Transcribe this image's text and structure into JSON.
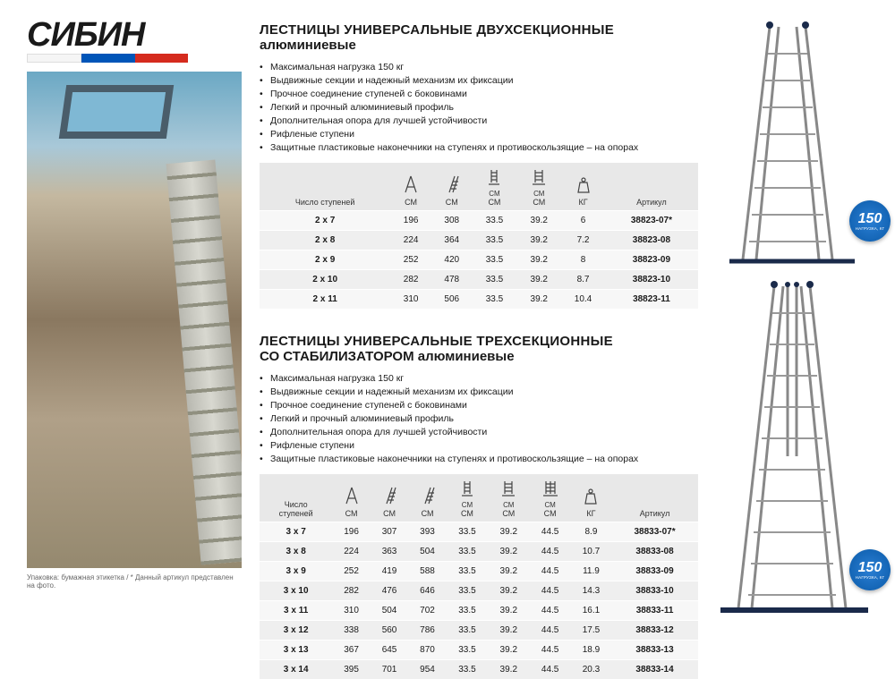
{
  "logo": {
    "text": "СИБИН"
  },
  "footnote": "Упаковка: бумажная этикетка  /  * Данный артикул представлен на фото.",
  "section1": {
    "title_line1": "ЛЕСТНИЦЫ УНИВЕРСАЛЬНЫЕ ДВУХСЕКЦИОННЫЕ",
    "title_line2": "алюминиевые",
    "bullets": [
      "Максимальная нагрузка 150 кг",
      "Выдвижные секции и надежный механизм их фиксации",
      "Прочное соединение ступеней с боковинами",
      "Легкий и прочный алюминиевый профиль",
      "Дополнительная опора для лучшей устойчивости",
      "Рифленые ступени",
      "Защитные пластиковые наконечники на ступенях и противоскользящие – на опорах"
    ],
    "headers": [
      "Число ступеней",
      "СМ",
      "СМ",
      "СМ",
      "СМ",
      "КГ",
      "Артикул"
    ],
    "sub_cm": [
      "",
      "",
      "",
      "",
      "СМ",
      "",
      ""
    ],
    "rows": [
      [
        "2 x 7",
        "196",
        "308",
        "33.5",
        "39.2",
        "6",
        "38823-07*"
      ],
      [
        "2 x 8",
        "224",
        "364",
        "33.5",
        "39.2",
        "7.2",
        "38823-08"
      ],
      [
        "2 x 9",
        "252",
        "420",
        "33.5",
        "39.2",
        "8",
        "38823-09"
      ],
      [
        "2 x 10",
        "282",
        "478",
        "33.5",
        "39.2",
        "8.7",
        "38823-10"
      ],
      [
        "2 x 11",
        "310",
        "506",
        "33.5",
        "39.2",
        "10.4",
        "38823-11"
      ]
    ]
  },
  "section2": {
    "title_line1": "ЛЕСТНИЦЫ УНИВЕРСАЛЬНЫЕ ТРЕХСЕКЦИОННЫЕ",
    "title_line2": "СО СТАБИЛИЗАТОРОМ алюминиевые",
    "bullets": [
      "Максимальная нагрузка 150 кг",
      "Выдвижные секции и надежный механизм их фиксации",
      "Прочное соединение ступеней с боковинами",
      "Легкий и прочный алюминиевый профиль",
      "Дополнительная опора для лучшей устойчивости",
      "Рифленые ступени",
      "Защитные пластиковые наконечники на ступенях и противоскользящие – на опорах"
    ],
    "headers": [
      "Число\nступеней",
      "СМ",
      "СМ",
      "СМ",
      "СМ",
      "СМ",
      "СМ",
      "КГ",
      "Артикул"
    ],
    "rows": [
      [
        "3 x 7",
        "196",
        "307",
        "393",
        "33.5",
        "39.2",
        "44.5",
        "8.9",
        "38833-07*"
      ],
      [
        "3 x 8",
        "224",
        "363",
        "504",
        "33.5",
        "39.2",
        "44.5",
        "10.7",
        "38833-08"
      ],
      [
        "3 x 9",
        "252",
        "419",
        "588",
        "33.5",
        "39.2",
        "44.5",
        "11.9",
        "38833-09"
      ],
      [
        "3 x 10",
        "282",
        "476",
        "646",
        "33.5",
        "39.2",
        "44.5",
        "14.3",
        "38833-10"
      ],
      [
        "3 x 11",
        "310",
        "504",
        "702",
        "33.5",
        "39.2",
        "44.5",
        "16.1",
        "38833-11"
      ],
      [
        "3 x 12",
        "338",
        "560",
        "786",
        "33.5",
        "39.2",
        "44.5",
        "17.5",
        "38833-12"
      ],
      [
        "3 x 13",
        "367",
        "645",
        "870",
        "33.5",
        "39.2",
        "44.5",
        "18.9",
        "38833-13"
      ],
      [
        "3 x 14",
        "395",
        "701",
        "954",
        "33.5",
        "39.2",
        "44.5",
        "20.3",
        "38833-14"
      ]
    ]
  },
  "badge": {
    "num": "150",
    "sub": "НАГРУЗКА, КГ"
  },
  "colors": {
    "bg": "#ffffff",
    "text": "#1a1a1a",
    "header_bg": "#e8e8e8",
    "row_odd": "#f7f7f7",
    "row_even": "#efefef",
    "badge_blue": "#0b5aa8",
    "stripe_blue": "#0055b8",
    "stripe_red": "#d52b1e"
  }
}
